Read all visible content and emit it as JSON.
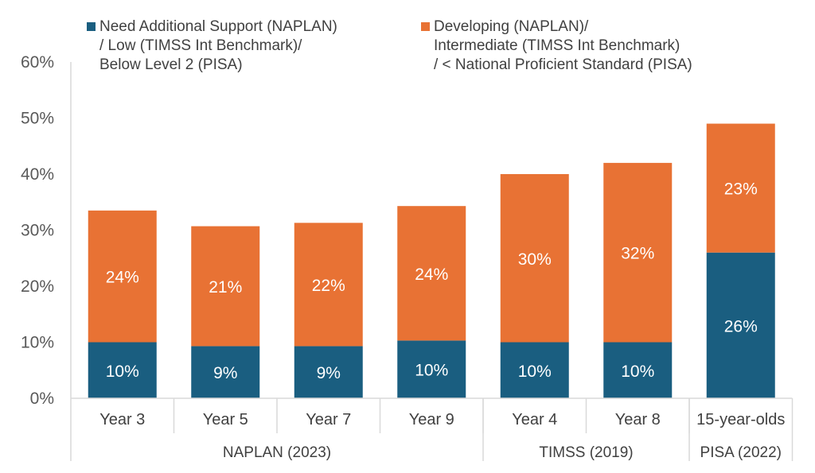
{
  "chart_data": {
    "type": "bar",
    "stacked": true,
    "title": "",
    "xlabel": "",
    "ylabel": "",
    "ylim": [
      0,
      60
    ],
    "yticks": [
      "0%",
      "10%",
      "20%",
      "30%",
      "40%",
      "50%",
      "60%"
    ],
    "grid": false,
    "legend_position": "top",
    "categories": [
      "Year 3",
      "Year 5",
      "Year 7",
      "Year 9",
      "Year 4",
      "Year 8",
      "15-year-olds"
    ],
    "groups": [
      {
        "label": "NAPLAN (2023)",
        "categories": [
          "Year 3",
          "Year 5",
          "Year 7",
          "Year 9"
        ]
      },
      {
        "label": "TIMSS (2019)",
        "categories": [
          "Year 4",
          "Year 8"
        ]
      },
      {
        "label": "PISA (2022)",
        "categories": [
          "15-year-olds"
        ]
      }
    ],
    "series": [
      {
        "name": "Need Additional Support (NAPLAN)\n/ Low (TIMSS Int Benchmark)/\nBelow Level 2 (PISA)",
        "color": "#1a5e80",
        "values": [
          10,
          9.3,
          9.3,
          10.3,
          10,
          10,
          26
        ],
        "labels": [
          "10%",
          "9%",
          "9%",
          "10%",
          "10%",
          "10%",
          "26%"
        ]
      },
      {
        "name": "Developing (NAPLAN)/\nIntermediate (TIMSS Int Benchmark)\n/ < National Proficient Standard (PISA)",
        "color": "#e87234",
        "values": [
          23.5,
          21.4,
          22,
          24,
          30,
          32,
          23
        ],
        "labels": [
          "24%",
          "21%",
          "22%",
          "24%",
          "30%",
          "32%",
          "23%"
        ]
      }
    ]
  }
}
